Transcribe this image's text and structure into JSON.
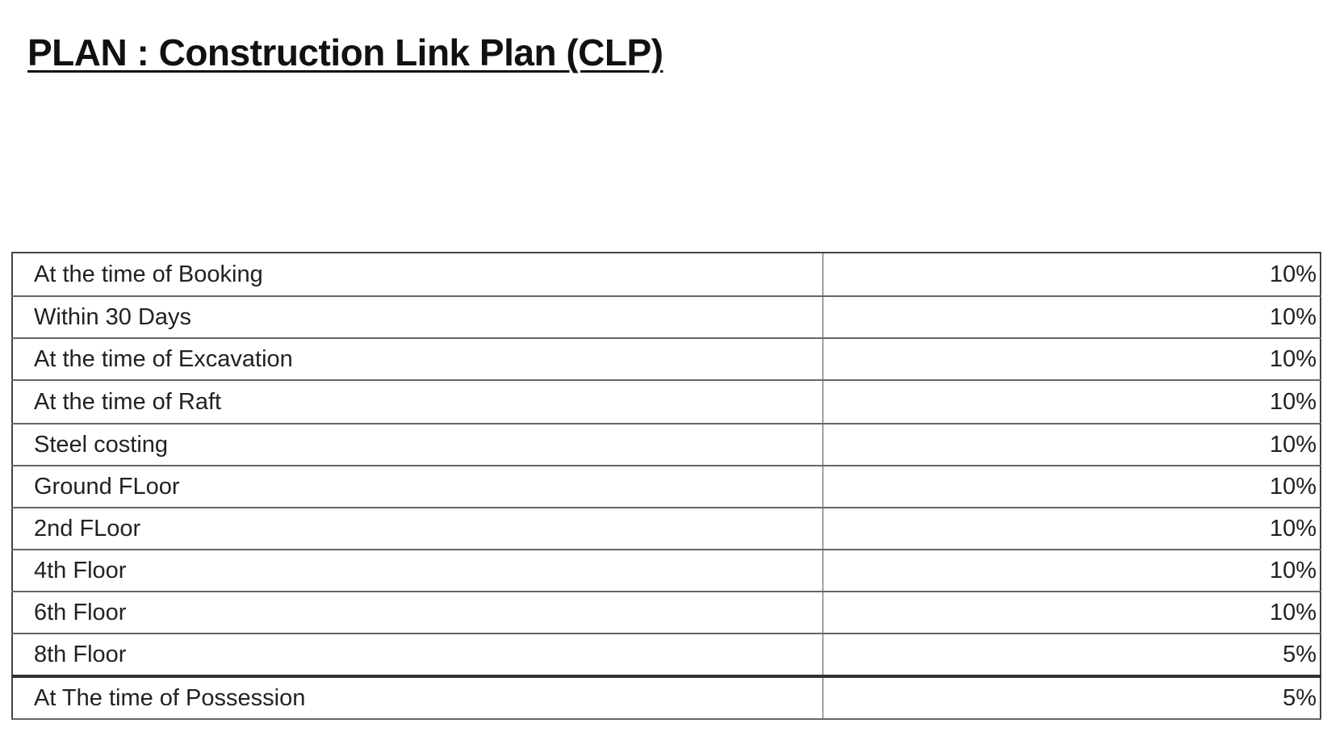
{
  "title": "PLAN : Construction Link Plan (CLP)",
  "rows": [
    {
      "stage": "At the time of Booking",
      "percent": "10%"
    },
    {
      "stage": "Within 30 Days",
      "percent": "10%"
    },
    {
      "stage": "At the time of Excavation",
      "percent": "10%"
    },
    {
      "stage": "At the time of Raft",
      "percent": "10%"
    },
    {
      "stage": "Steel costing",
      "percent": "10%"
    },
    {
      "stage": "Ground FLoor",
      "percent": "10%"
    },
    {
      "stage": "2nd FLoor",
      "percent": "10%"
    },
    {
      "stage": "4th Floor",
      "percent": "10%"
    },
    {
      "stage": "6th Floor",
      "percent": "10%"
    },
    {
      "stage": "8th Floor",
      "percent": "5%"
    },
    {
      "stage": "At The time of Possession",
      "percent": "5%"
    }
  ]
}
